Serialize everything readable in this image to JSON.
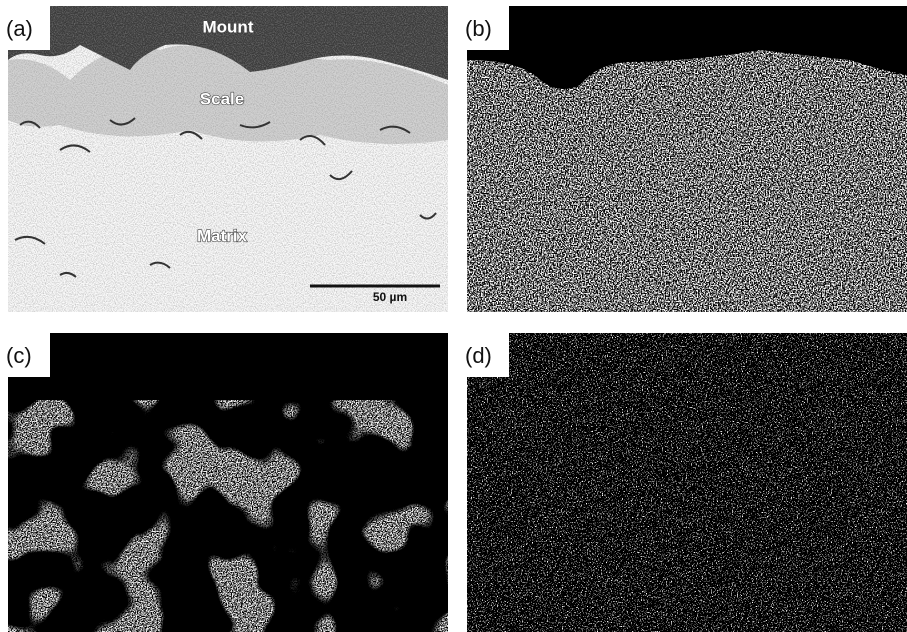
{
  "panels": [
    {
      "label": "(a)",
      "annotations": [
        "Mount",
        "Scale",
        "Matrix"
      ],
      "scale_bar": "50 µm"
    },
    {
      "label": "(b)"
    },
    {
      "label": "(c)"
    },
    {
      "label": "(d)"
    }
  ]
}
